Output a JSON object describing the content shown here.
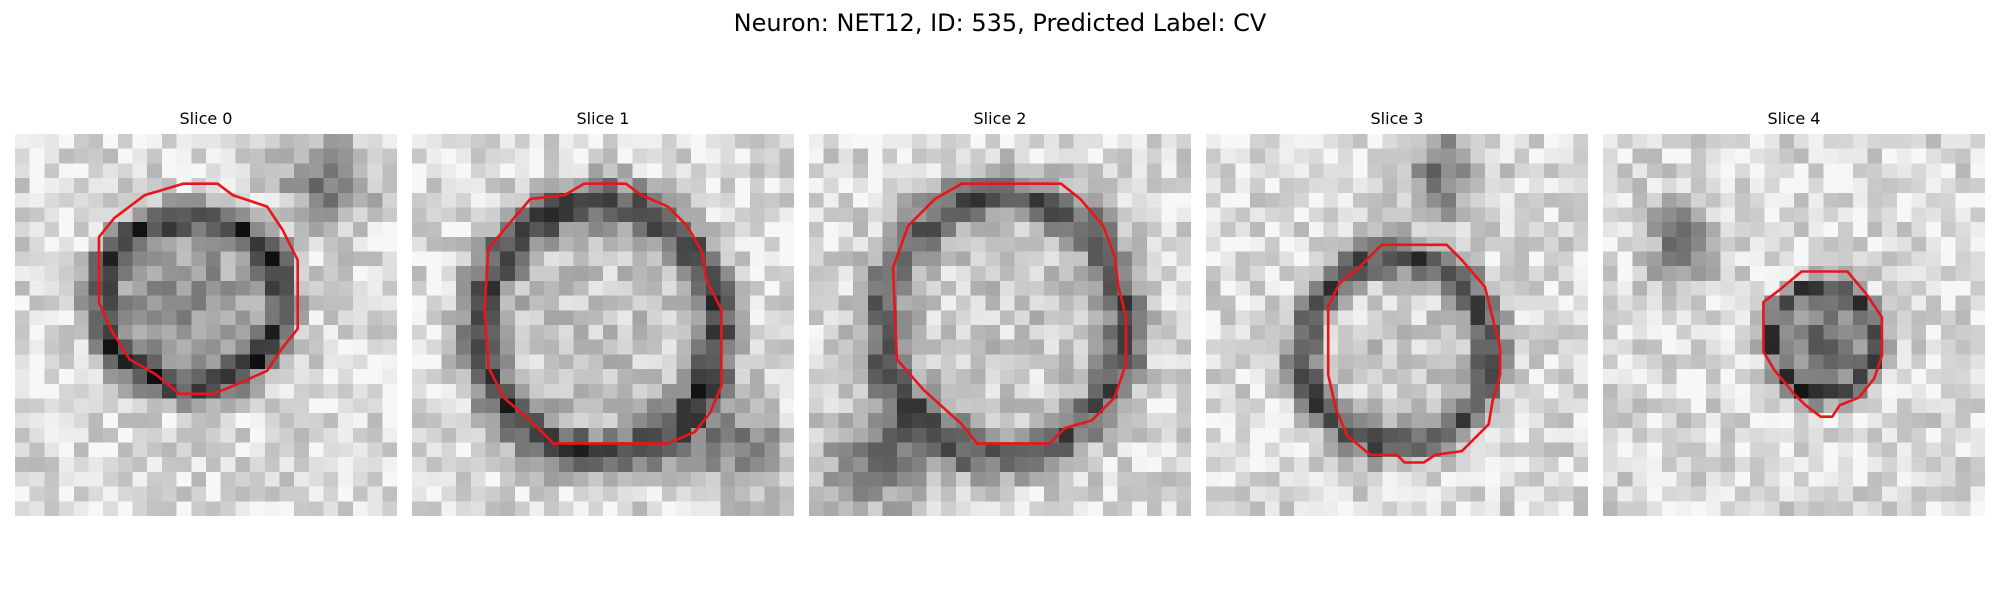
{
  "figure": {
    "title": "Neuron: NET12, ID: 535, Predicted Label: CV"
  },
  "contour_color": "#e8161a",
  "slices": [
    {
      "label": "Slice 0"
    },
    {
      "label": "Slice 1"
    },
    {
      "label": "Slice 2"
    },
    {
      "label": "Slice 3"
    },
    {
      "label": "Slice 4"
    }
  ]
}
